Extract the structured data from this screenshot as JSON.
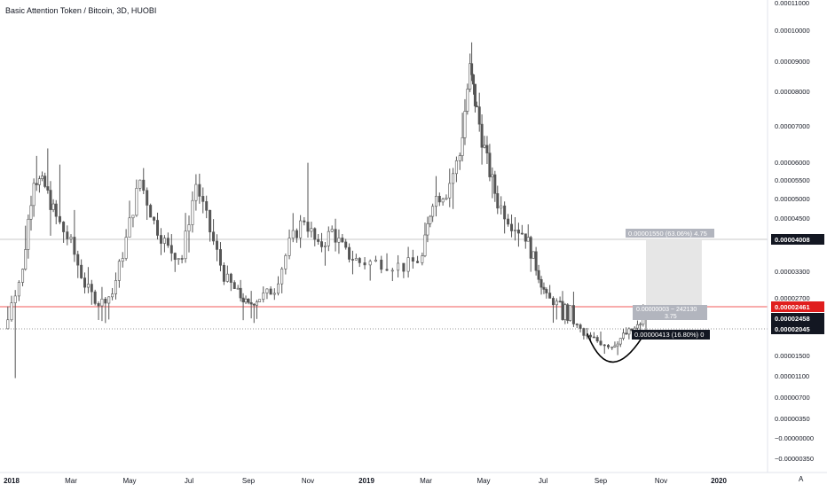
{
  "header": {
    "title": "Basic Attention Token / Bitcoin, 3D, HUOBI"
  },
  "colors": {
    "candle_body": "#ffffff",
    "candle_outline": "#555555",
    "red_line": "#f05a5a",
    "gray_line": "#c8c8c8",
    "range_fill": "#e6e6e6",
    "dark_label": "#131722",
    "red_label": "#e01e1e",
    "gray_label": "#9ba3ad"
  },
  "annotations": {
    "target_box_label": "0.00001550 (63.06%) 4.75",
    "small_box_label_line1": "0.00000003 − 242130",
    "small_box_label_line2": "3.75",
    "drop_label": "0.00000413 (16.80%) 0",
    "corner_badge": "A"
  },
  "chart_data": {
    "type": "candlestick",
    "title": "Basic Attention Token / Bitcoin, 3D, HUOBI",
    "xlabel": "",
    "ylabel": "",
    "x_ticks": [
      "2018",
      "Mar",
      "May",
      "Jul",
      "Sep",
      "Nov",
      "2019",
      "Mar",
      "May",
      "Jul",
      "Sep",
      "Nov",
      "2020"
    ],
    "y_ticks": [
      "0.00011000",
      "0.00010000",
      "0.00009000",
      "0.00008000",
      "0.00007000",
      "0.00006000",
      "0.00005500",
      "0.00005000",
      "0.00004500",
      "0.00004008",
      "0.00003300",
      "0.00002700",
      "0.00002461",
      "0.00002458",
      "0.00002045",
      "0.00001500",
      "0.00001100",
      "0.00000700",
      "0.00000350",
      "−0.00000000",
      "−0.00000350"
    ],
    "price_labels": [
      {
        "value": "0.00004008",
        "style": "dark"
      },
      {
        "value": "0.00002461",
        "style": "red"
      },
      {
        "value": "0.00002458",
        "style": "dark"
      },
      {
        "value": "0.00002045",
        "style": "dark"
      }
    ],
    "horizontal_lines": [
      {
        "value": 4.008e-05,
        "color": "gray"
      },
      {
        "value": 2.461e-05,
        "color": "red"
      },
      {
        "value": 2.045e-05,
        "color": "dotted"
      }
    ],
    "series": [
      {
        "ohlc_waypoints": [
          [
            2017.99,
            2.05e-05,
            2.55e-05,
            2.8e-06,
            2.4e-05
          ],
          [
            2018.03,
            2.4e-05,
            3.8e-05,
            2.2e-05,
            3.3e-05
          ],
          [
            2018.06,
            3.3e-05,
            6.4e-05,
            3.1e-05,
            5.6e-05
          ],
          [
            2018.09,
            5.6e-05,
            6.8e-05,
            4.6e-05,
            5.3e-05
          ],
          [
            2018.12,
            5.3e-05,
            7e-05,
            4.2e-05,
            4.5e-05
          ],
          [
            2018.16,
            4.5e-05,
            5.2e-05,
            3.6e-05,
            3.9e-05
          ],
          [
            2018.2,
            3.9e-05,
            4.2e-05,
            2.7e-05,
            3e-05
          ],
          [
            2018.24,
            3e-05,
            3.3e-05,
            2.3e-05,
            2.55e-05
          ],
          [
            2018.28,
            2.55e-05,
            3e-05,
            2.35e-05,
            2.8e-05
          ],
          [
            2018.32,
            2.8e-05,
            4.5e-05,
            2.7e-05,
            4e-05
          ],
          [
            2018.36,
            4e-05,
            5.9e-05,
            3.8e-05,
            5.5e-05
          ],
          [
            2018.4,
            5.5e-05,
            5.6e-05,
            4.2e-05,
            4.4e-05
          ],
          [
            2018.44,
            4.4e-05,
            4.7e-05,
            3.5e-05,
            3.8e-05
          ],
          [
            2018.48,
            3.8e-05,
            4.2e-05,
            3.2e-05,
            3.6e-05
          ],
          [
            2018.52,
            3.6e-05,
            5.6e-05,
            3.4e-05,
            5.4e-05
          ],
          [
            2018.56,
            5.4e-05,
            5.6e-05,
            4e-05,
            4.2e-05
          ],
          [
            2018.6,
            4.2e-05,
            4.3e-05,
            3e-05,
            3.2e-05
          ],
          [
            2018.64,
            3.2e-05,
            3.4e-05,
            2.6e-05,
            2.8e-05
          ],
          [
            2018.67,
            2.8e-05,
            3e-05,
            2.3e-05,
            2.5e-05
          ],
          [
            2018.7,
            2.5e-05,
            2.8e-05,
            2.4e-05,
            2.7e-05
          ],
          [
            2018.74,
            2.7e-05,
            3e-05,
            2.6e-05,
            2.9e-05
          ],
          [
            2018.78,
            2.9e-05,
            4.2e-05,
            2.8e-05,
            3.9e-05
          ],
          [
            2018.82,
            3.9e-05,
            6.2e-05,
            3.8e-05,
            4.5e-05
          ],
          [
            2018.86,
            4.5e-05,
            4.6e-05,
            3.5e-05,
            3.8e-05
          ],
          [
            2018.9,
            3.8e-05,
            4.4e-05,
            3.6e-05,
            4.2e-05
          ],
          [
            2018.94,
            4.2e-05,
            4.3e-05,
            3.5e-05,
            3.7e-05
          ],
          [
            2018.98,
            3.7e-05,
            3.8e-05,
            3.2e-05,
            3.5e-05
          ],
          [
            2019.04,
            3.5e-05,
            3.8e-05,
            3.3e-05,
            3.5e-05
          ],
          [
            2019.1,
            3.5e-05,
            3.6e-05,
            3.2e-05,
            3.4e-05
          ],
          [
            2019.15,
            3.4e-05,
            3.8e-05,
            3.2e-05,
            3.6e-05
          ],
          [
            2019.18,
            3.6e-05,
            5.5e-05,
            3.5e-05,
            5e-05
          ],
          [
            2019.22,
            5e-05,
            5.6e-05,
            4.5e-05,
            5.2e-05
          ],
          [
            2019.26,
            5.2e-05,
            6.8e-05,
            5e-05,
            6.2e-05
          ],
          [
            2019.29,
            6.2e-05,
            9.5e-05,
            6e-05,
            8.7e-05
          ],
          [
            2019.31,
            8.7e-05,
            9e-05,
            7e-05,
            7.4e-05
          ],
          [
            2019.34,
            7.4e-05,
            7.6e-05,
            5.6e-05,
            6e-05
          ],
          [
            2019.37,
            6e-05,
            6.2e-05,
            4.6e-05,
            4.9e-05
          ],
          [
            2019.41,
            4.9e-05,
            5.2e-05,
            4.2e-05,
            4.4e-05
          ],
          [
            2019.45,
            4.4e-05,
            4.6e-05,
            3.8e-05,
            4.1e-05
          ],
          [
            2019.48,
            4.1e-05,
            4.2e-05,
            3.2e-05,
            3.4e-05
          ],
          [
            2019.51,
            3.4e-05,
            3.5e-05,
            2.5e-05,
            2.7e-05
          ],
          [
            2019.55,
            2.7e-05,
            2.9e-05,
            2.35e-05,
            2.5e-05
          ],
          [
            2019.58,
            2.5e-05,
            2.8e-05,
            2.3e-05,
            2.4e-05
          ],
          [
            2019.62,
            2.4e-05,
            2.5e-05,
            1.8e-05,
            1.9e-05
          ],
          [
            2019.66,
            1.9e-05,
            2.1e-05,
            1.6e-05,
            1.8e-05
          ],
          [
            2019.7,
            1.8e-05,
            1.9e-05,
            1.5e-05,
            1.7e-05
          ],
          [
            2019.73,
            1.7e-05,
            2e-05,
            1.6e-05,
            1.9e-05
          ],
          [
            2019.76,
            1.9e-05,
            2.15e-05,
            1.75e-05,
            2.05e-05
          ],
          [
            2019.79,
            2.05e-05,
            2.5e-05,
            1.95e-05,
            2.46e-05
          ]
        ]
      }
    ],
    "drawings": {
      "arc": {
        "start": [
          2019.63,
          1.95e-05
        ],
        "control": [
          2019.695,
          8e-06
        ],
        "end": [
          2019.79,
          2e-05
        ]
      },
      "target_range": {
        "x_start": 2019.79,
        "x_end": 2019.95,
        "low": 2.458e-05,
        "high": 4.008e-05
      }
    }
  }
}
